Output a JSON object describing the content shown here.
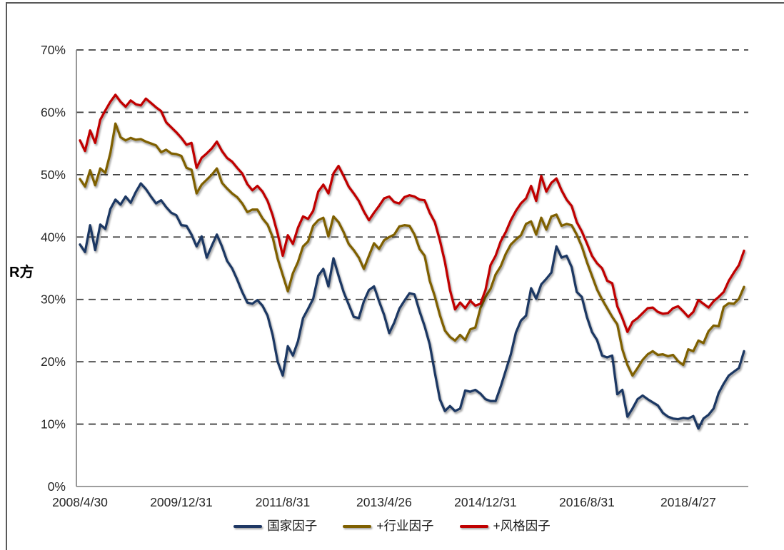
{
  "chart_data": {
    "type": "line",
    "title": "",
    "ylabel": "R方",
    "xlabel": "",
    "ylim": [
      0,
      70
    ],
    "y_tick_labels": [
      "0%",
      "10%",
      "20%",
      "30%",
      "40%",
      "50%",
      "60%",
      "70%"
    ],
    "x_tick_labels": [
      "2008/4/30",
      "2009/12/31",
      "2011/8/31",
      "2013/4/26",
      "2014/12/31",
      "2016/8/31",
      "2018/4/27"
    ],
    "x_tick_indices": [
      0,
      20,
      40,
      60,
      80,
      100,
      120
    ],
    "x_frequency": "monthly",
    "n_points": 132,
    "grid": "horizontal dashed",
    "legend_position": "bottom",
    "series": [
      {
        "name": "国家因子",
        "color": "#1f3864",
        "values": [
          38.8,
          37.6,
          41.9,
          37.9,
          42.0,
          41.3,
          44.5,
          46.0,
          45.2,
          46.5,
          45.5,
          47.2,
          48.6,
          47.7,
          46.5,
          45.4,
          45.9,
          44.8,
          43.9,
          43.5,
          41.9,
          41.8,
          40.4,
          38.5,
          40.1,
          36.7,
          38.6,
          40.4,
          38.5,
          36.2,
          35.0,
          33.2,
          31.2,
          29.5,
          29.3,
          29.9,
          29.0,
          27.4,
          24.3,
          20.0,
          17.8,
          22.5,
          21.0,
          23.3,
          27.0,
          28.5,
          30.1,
          33.8,
          34.9,
          32.1,
          36.6,
          33.8,
          31.2,
          29.2,
          27.2,
          27.0,
          29.7,
          31.5,
          32.1,
          29.7,
          27.5,
          24.6,
          26.3,
          28.5,
          29.8,
          31.0,
          30.8,
          28.1,
          25.7,
          22.8,
          18.3,
          14.0,
          12.1,
          12.9,
          12.1,
          12.5,
          15.4,
          15.2,
          15.5,
          14.9,
          14.0,
          13.7,
          13.7,
          16.0,
          18.6,
          21.2,
          24.7,
          26.6,
          27.4,
          31.8,
          30.1,
          32.4,
          33.3,
          34.3,
          38.5,
          36.7,
          37.0,
          35.2,
          31.2,
          30.4,
          27.2,
          24.8,
          23.5,
          21.0,
          20.7,
          21.0,
          14.8,
          15.5,
          11.2,
          12.5,
          14.0,
          14.6,
          14.0,
          13.5,
          13.0,
          11.8,
          11.2,
          10.9,
          10.8,
          11.0,
          10.9,
          11.3,
          9.3,
          10.9,
          11.5,
          12.5,
          15.0,
          16.5,
          17.8,
          18.4,
          19.0,
          21.7
        ]
      },
      {
        "name": "+行业因子",
        "color": "#7f6000",
        "values": [
          49.3,
          48.1,
          50.7,
          48.3,
          51.0,
          50.3,
          53.5,
          58.2,
          56.0,
          55.5,
          55.9,
          55.6,
          55.7,
          55.3,
          55.0,
          54.7,
          53.6,
          54.0,
          53.4,
          53.3,
          53.0,
          51.1,
          50.8,
          47.0,
          48.4,
          49.2,
          50.0,
          51.0,
          48.7,
          47.8,
          47.0,
          46.4,
          45.4,
          44.0,
          44.4,
          44.4,
          43.0,
          42.0,
          40.0,
          36.5,
          33.9,
          31.3,
          34.2,
          36.0,
          38.5,
          39.3,
          41.8,
          42.7,
          43.1,
          40.1,
          43.3,
          42.4,
          40.8,
          38.9,
          37.9,
          36.7,
          34.9,
          37.0,
          39.0,
          38.1,
          39.5,
          40.0,
          40.4,
          41.7,
          41.9,
          41.8,
          40.4,
          38.1,
          37.0,
          33.0,
          30.5,
          27.5,
          25.0,
          24.0,
          23.4,
          24.3,
          23.5,
          25.2,
          25.5,
          28.6,
          30.4,
          31.7,
          34.0,
          35.3,
          37.3,
          38.8,
          39.6,
          40.3,
          42.1,
          42.5,
          40.4,
          43.1,
          41.2,
          43.3,
          43.6,
          41.8,
          42.1,
          41.9,
          40.4,
          38.5,
          36.0,
          33.8,
          31.6,
          30.0,
          28.6,
          27.2,
          26.0,
          22.0,
          19.5,
          17.8,
          19.0,
          20.3,
          21.2,
          21.7,
          21.1,
          21.2,
          20.9,
          21.1,
          20.1,
          19.5,
          22.0,
          21.7,
          23.4,
          23.0,
          24.9,
          25.8,
          25.7,
          28.8,
          29.4,
          29.3,
          30.1,
          32.0
        ]
      },
      {
        "name": "+风格因子",
        "color": "#c00000",
        "values": [
          55.5,
          53.8,
          57.1,
          55.1,
          58.8,
          60.3,
          61.7,
          62.8,
          61.7,
          60.9,
          61.9,
          61.3,
          61.1,
          62.2,
          61.5,
          60.8,
          60.2,
          58.4,
          57.6,
          56.8,
          55.9,
          54.8,
          55.1,
          51.1,
          52.7,
          53.4,
          54.2,
          55.3,
          53.8,
          52.7,
          52.1,
          51.1,
          50.2,
          48.5,
          47.5,
          48.2,
          47.3,
          45.8,
          43.5,
          40.5,
          37.0,
          40.3,
          38.9,
          41.5,
          43.3,
          42.9,
          44.2,
          47.3,
          48.4,
          47.0,
          50.2,
          51.4,
          49.8,
          48.1,
          47.0,
          45.8,
          44.1,
          42.7,
          43.9,
          45.0,
          46.2,
          46.5,
          45.6,
          45.4,
          46.4,
          46.7,
          46.5,
          46.0,
          45.9,
          43.9,
          42.4,
          39.5,
          36.0,
          31.5,
          28.4,
          29.5,
          28.6,
          29.8,
          29.0,
          29.3,
          31.5,
          35.5,
          37.0,
          39.3,
          40.8,
          42.7,
          44.2,
          45.4,
          46.2,
          48.2,
          45.8,
          49.8,
          47.3,
          48.7,
          49.4,
          47.5,
          46.0,
          45.0,
          42.4,
          40.9,
          39.0,
          37.0,
          35.8,
          35.0,
          33.0,
          32.6,
          28.9,
          27.0,
          24.8,
          26.4,
          27.0,
          27.8,
          28.6,
          28.7,
          28.0,
          27.7,
          27.8,
          28.6,
          28.9,
          28.1,
          27.2,
          28.0,
          29.9,
          29.3,
          28.7,
          29.7,
          30.4,
          31.2,
          33.0,
          34.3,
          35.5,
          37.8
        ]
      }
    ]
  },
  "colors": {
    "grid": "#404040",
    "axis": "#7f7f7f",
    "tick_text": "#262626",
    "frame_border": "#595959",
    "background": "#ffffff"
  }
}
